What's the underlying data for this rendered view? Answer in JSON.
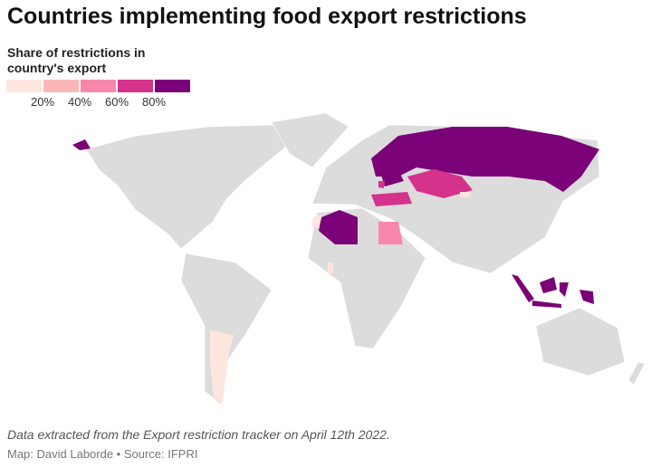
{
  "title": "Countries implementing food export restrictions",
  "legend": {
    "title": "Share of restrictions in country's export",
    "colors": [
      "#fde6de",
      "#fbb7b8",
      "#f888ab",
      "#d5328b",
      "#7a0177"
    ],
    "ticks": [
      "20%",
      "40%",
      "60%",
      "80%"
    ]
  },
  "no_data_color": "#dcdcdc",
  "note": "Data extracted from the Export restriction tracker on April 12th 2022.",
  "source": "Map: David Laborde • Source: IFPRI"
}
